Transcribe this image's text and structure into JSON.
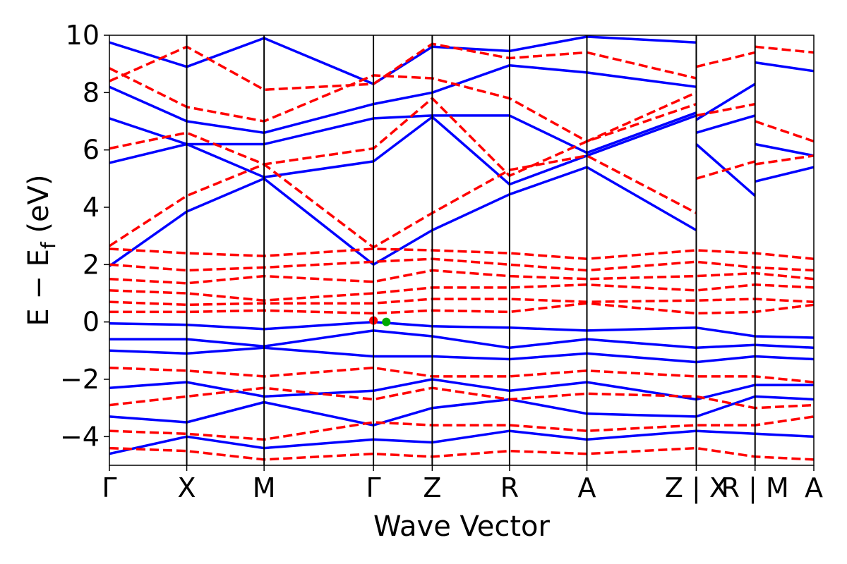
{
  "chart_data": {
    "type": "line",
    "title": "",
    "xlabel": "Wave Vector",
    "ylabel": "E − E",
    "ylabel_sub": "f",
    "ylabel_unit": " (eV)",
    "ylim": [
      -5,
      10
    ],
    "yticks": [
      {
        "value": -4,
        "label": "−4"
      },
      {
        "value": -2,
        "label": "−2"
      },
      {
        "value": 0,
        "label": "0"
      },
      {
        "value": 2,
        "label": "2"
      },
      {
        "value": 4,
        "label": "4"
      },
      {
        "value": 6,
        "label": "6"
      },
      {
        "value": 8,
        "label": "8"
      },
      {
        "value": 10,
        "label": "10"
      }
    ],
    "kpath": [
      {
        "label": "Γ",
        "k": 0
      },
      {
        "label": "X",
        "k": 1
      },
      {
        "label": "M",
        "k": 2
      },
      {
        "label": "Γ",
        "k": 3.414
      },
      {
        "label": "Z",
        "k": 4.174
      },
      {
        "label": "R",
        "k": 5.174
      },
      {
        "label": "A",
        "k": 6.174
      },
      {
        "label": "Z | X",
        "k": 7.588
      },
      {
        "label": "R | M",
        "k": 8.348
      },
      {
        "label": "A",
        "k": 9.108
      }
    ],
    "series": [
      {
        "style": "solid",
        "color": "#0000ff",
        "bands": [
          [
            [
              0,
              1.95
            ],
            [
              1,
              3.85
            ],
            [
              2,
              5.0
            ],
            [
              3.414,
              2.0
            ],
            [
              4.174,
              3.2
            ],
            [
              5.174,
              4.45
            ],
            [
              6.174,
              5.4
            ],
            [
              7.588,
              3.2
            ]
          ],
          [
            [
              0,
              5.55
            ],
            [
              1,
              6.2
            ],
            [
              2,
              5.05
            ],
            [
              3.414,
              5.6
            ],
            [
              4.174,
              7.15
            ],
            [
              5.174,
              4.8
            ],
            [
              6.174,
              5.8
            ],
            [
              7.588,
              7.2
            ]
          ],
          [
            [
              0,
              7.1
            ],
            [
              1,
              6.2
            ],
            [
              2,
              6.2
            ],
            [
              3.414,
              7.1
            ],
            [
              4.174,
              7.2
            ],
            [
              5.174,
              7.2
            ],
            [
              6.174,
              5.9
            ],
            [
              7.588,
              7.3
            ]
          ],
          [
            [
              0,
              8.2
            ],
            [
              1,
              7.0
            ],
            [
              2,
              6.6
            ],
            [
              3.414,
              7.6
            ],
            [
              4.174,
              8.0
            ],
            [
              5.174,
              8.95
            ],
            [
              6.174,
              8.7
            ],
            [
              7.588,
              8.2
            ]
          ],
          [
            [
              0,
              9.75
            ],
            [
              1,
              8.9
            ],
            [
              2,
              9.9
            ],
            [
              3.414,
              8.3
            ],
            [
              4.174,
              9.6
            ],
            [
              5.174,
              9.45
            ],
            [
              6.174,
              9.95
            ],
            [
              7.588,
              9.75
            ]
          ],
          [
            [
              7.588,
              6.6
            ],
            [
              8.348,
              7.2
            ]
          ],
          [
            [
              7.588,
              6.2
            ],
            [
              8.348,
              4.4
            ]
          ],
          [
            [
              7.588,
              7.05
            ],
            [
              8.348,
              8.3
            ]
          ],
          [
            [
              8.348,
              4.9
            ],
            [
              9.108,
              5.4
            ]
          ],
          [
            [
              8.348,
              6.2
            ],
            [
              9.108,
              5.8
            ]
          ],
          [
            [
              8.348,
              9.05
            ],
            [
              9.108,
              8.75
            ]
          ],
          [
            [
              0,
              -0.05
            ],
            [
              1,
              -0.1
            ],
            [
              2,
              -0.25
            ],
            [
              3.414,
              0.0
            ],
            [
              4.174,
              -0.15
            ],
            [
              5.174,
              -0.2
            ],
            [
              6.174,
              -0.3
            ],
            [
              7.588,
              -0.2
            ],
            [
              8.348,
              -0.5
            ],
            [
              9.108,
              -0.55
            ]
          ],
          [
            [
              0,
              -0.6
            ],
            [
              1,
              -0.6
            ],
            [
              2,
              -0.85
            ],
            [
              3.414,
              -0.3
            ],
            [
              4.174,
              -0.5
            ],
            [
              5.174,
              -0.9
            ],
            [
              6.174,
              -0.6
            ],
            [
              7.588,
              -0.9
            ],
            [
              8.348,
              -0.8
            ],
            [
              9.108,
              -0.9
            ]
          ],
          [
            [
              0,
              -1.0
            ],
            [
              1,
              -1.1
            ],
            [
              2,
              -0.9
            ],
            [
              3.414,
              -1.2
            ],
            [
              4.174,
              -1.2
            ],
            [
              5.174,
              -1.3
            ],
            [
              6.174,
              -1.1
            ],
            [
              7.588,
              -1.4
            ],
            [
              8.348,
              -1.2
            ],
            [
              9.108,
              -1.3
            ]
          ],
          [
            [
              0,
              -2.3
            ],
            [
              1,
              -2.1
            ],
            [
              2,
              -2.6
            ],
            [
              3.414,
              -2.4
            ],
            [
              4.174,
              -2.0
            ],
            [
              5.174,
              -2.4
            ],
            [
              6.174,
              -2.1
            ],
            [
              7.588,
              -2.7
            ],
            [
              8.348,
              -2.2
            ],
            [
              9.108,
              -2.2
            ]
          ],
          [
            [
              0,
              -3.3
            ],
            [
              1,
              -3.5
            ],
            [
              2,
              -2.8
            ],
            [
              3.414,
              -3.6
            ],
            [
              4.174,
              -3.0
            ],
            [
              5.174,
              -2.7
            ],
            [
              6.174,
              -3.2
            ],
            [
              7.588,
              -3.3
            ],
            [
              8.348,
              -2.6
            ],
            [
              9.108,
              -2.7
            ]
          ],
          [
            [
              0,
              -4.6
            ],
            [
              1,
              -4.0
            ],
            [
              2,
              -4.4
            ],
            [
              3.414,
              -4.1
            ],
            [
              4.174,
              -4.2
            ],
            [
              5.174,
              -3.8
            ],
            [
              6.174,
              -4.1
            ],
            [
              7.588,
              -3.8
            ],
            [
              8.348,
              -3.9
            ],
            [
              9.108,
              -4.0
            ]
          ]
        ]
      },
      {
        "style": "dashed",
        "color": "#ff0000",
        "bands": [
          [
            [
              0,
              2.65
            ],
            [
              1,
              4.4
            ],
            [
              2,
              5.5
            ],
            [
              3.414,
              2.6
            ],
            [
              4.174,
              3.8
            ],
            [
              5.174,
              5.3
            ],
            [
              6.174,
              5.8
            ],
            [
              7.588,
              3.8
            ]
          ],
          [
            [
              0,
              6.05
            ],
            [
              1,
              6.6
            ],
            [
              2,
              5.5
            ],
            [
              3.414,
              6.05
            ],
            [
              4.174,
              7.8
            ],
            [
              5.174,
              5.1
            ],
            [
              6.174,
              6.3
            ],
            [
              7.588,
              7.6
            ]
          ],
          [
            [
              0,
              8.85
            ],
            [
              1,
              7.5
            ],
            [
              2,
              7.0
            ],
            [
              3.414,
              8.6
            ],
            [
              4.174,
              8.5
            ],
            [
              5.174,
              7.8
            ],
            [
              6.174,
              6.3
            ],
            [
              7.588,
              8.0
            ]
          ],
          [
            [
              0,
              8.4
            ],
            [
              1,
              9.6
            ],
            [
              2,
              8.1
            ],
            [
              3.414,
              8.3
            ],
            [
              4.174,
              9.7
            ],
            [
              5.174,
              9.2
            ],
            [
              6.174,
              9.4
            ],
            [
              7.588,
              8.5
            ]
          ],
          [
            [
              7.588,
              8.9
            ],
            [
              8.348,
              9.4
            ]
          ],
          [
            [
              7.588,
              7.2
            ],
            [
              8.348,
              7.6
            ]
          ],
          [
            [
              7.588,
              5.0
            ],
            [
              8.348,
              5.6
            ]
          ],
          [
            [
              8.348,
              5.5
            ],
            [
              9.108,
              5.8
            ]
          ],
          [
            [
              8.348,
              7.0
            ],
            [
              9.108,
              6.3
            ]
          ],
          [
            [
              8.348,
              9.6
            ],
            [
              9.108,
              9.4
            ]
          ],
          [
            [
              0,
              2.55
            ],
            [
              1,
              2.4
            ],
            [
              2,
              2.3
            ],
            [
              3.414,
              2.55
            ],
            [
              4.174,
              2.5
            ],
            [
              5.174,
              2.4
            ],
            [
              6.174,
              2.2
            ],
            [
              7.588,
              2.5
            ],
            [
              8.348,
              2.4
            ],
            [
              9.108,
              2.2
            ]
          ],
          [
            [
              0,
              2.0
            ],
            [
              1,
              1.8
            ],
            [
              2,
              1.9
            ],
            [
              3.414,
              2.1
            ],
            [
              4.174,
              2.2
            ],
            [
              5.174,
              2.0
            ],
            [
              6.174,
              1.8
            ],
            [
              7.588,
              2.1
            ],
            [
              8.348,
              1.9
            ],
            [
              9.108,
              1.8
            ]
          ],
          [
            [
              0,
              1.5
            ],
            [
              1,
              1.35
            ],
            [
              2,
              1.6
            ],
            [
              3.414,
              1.4
            ],
            [
              4.174,
              1.8
            ],
            [
              5.174,
              1.6
            ],
            [
              6.174,
              1.5
            ],
            [
              7.588,
              1.6
            ],
            [
              8.348,
              1.7
            ],
            [
              9.108,
              1.5
            ]
          ],
          [
            [
              0,
              1.1
            ],
            [
              1,
              1.0
            ],
            [
              2,
              0.75
            ],
            [
              3.414,
              1.0
            ],
            [
              4.174,
              1.2
            ],
            [
              5.174,
              1.2
            ],
            [
              6.174,
              1.3
            ],
            [
              7.588,
              1.1
            ],
            [
              8.348,
              1.3
            ],
            [
              9.108,
              1.2
            ]
          ],
          [
            [
              0,
              0.7
            ],
            [
              1,
              0.6
            ],
            [
              2,
              0.65
            ],
            [
              3.414,
              0.65
            ],
            [
              4.174,
              0.8
            ],
            [
              5.174,
              0.8
            ],
            [
              6.174,
              0.7
            ],
            [
              7.588,
              0.75
            ],
            [
              8.348,
              0.8
            ],
            [
              9.108,
              0.7
            ]
          ],
          [
            [
              0,
              0.35
            ],
            [
              1,
              0.35
            ],
            [
              2,
              0.4
            ],
            [
              3.414,
              0.3
            ],
            [
              4.174,
              0.4
            ],
            [
              5.174,
              0.35
            ],
            [
              6.174,
              0.65
            ],
            [
              7.588,
              0.3
            ],
            [
              8.348,
              0.35
            ],
            [
              9.108,
              0.6
            ]
          ],
          [
            [
              0,
              -1.6
            ],
            [
              1,
              -1.7
            ],
            [
              2,
              -1.9
            ],
            [
              3.414,
              -1.6
            ],
            [
              4.174,
              -1.9
            ],
            [
              5.174,
              -1.9
            ],
            [
              6.174,
              -1.7
            ],
            [
              7.588,
              -1.9
            ],
            [
              8.348,
              -1.9
            ],
            [
              9.108,
              -2.1
            ]
          ],
          [
            [
              0,
              -2.9
            ],
            [
              1,
              -2.6
            ],
            [
              2,
              -2.3
            ],
            [
              3.414,
              -2.7
            ],
            [
              4.174,
              -2.3
            ],
            [
              5.174,
              -2.7
            ],
            [
              6.174,
              -2.5
            ],
            [
              7.588,
              -2.6
            ],
            [
              8.348,
              -3.0
            ],
            [
              9.108,
              -2.9
            ]
          ],
          [
            [
              0,
              -3.8
            ],
            [
              1,
              -3.9
            ],
            [
              2,
              -4.1
            ],
            [
              3.414,
              -3.5
            ],
            [
              4.174,
              -3.6
            ],
            [
              5.174,
              -3.6
            ],
            [
              6.174,
              -3.8
            ],
            [
              7.588,
              -3.6
            ],
            [
              8.348,
              -3.6
            ],
            [
              9.108,
              -3.3
            ]
          ],
          [
            [
              0,
              -4.4
            ],
            [
              1,
              -4.5
            ],
            [
              2,
              -4.8
            ],
            [
              3.414,
              -4.6
            ],
            [
              4.174,
              -4.7
            ],
            [
              5.174,
              -4.5
            ],
            [
              6.174,
              -4.6
            ],
            [
              7.588,
              -4.4
            ],
            [
              8.348,
              -4.7
            ],
            [
              9.108,
              -4.8
            ]
          ]
        ]
      }
    ],
    "markers": [
      {
        "k": 3.414,
        "e": 0.05,
        "color": "#ff0000"
      },
      {
        "k": 3.58,
        "e": 0.0,
        "color": "#00aa00"
      }
    ]
  }
}
